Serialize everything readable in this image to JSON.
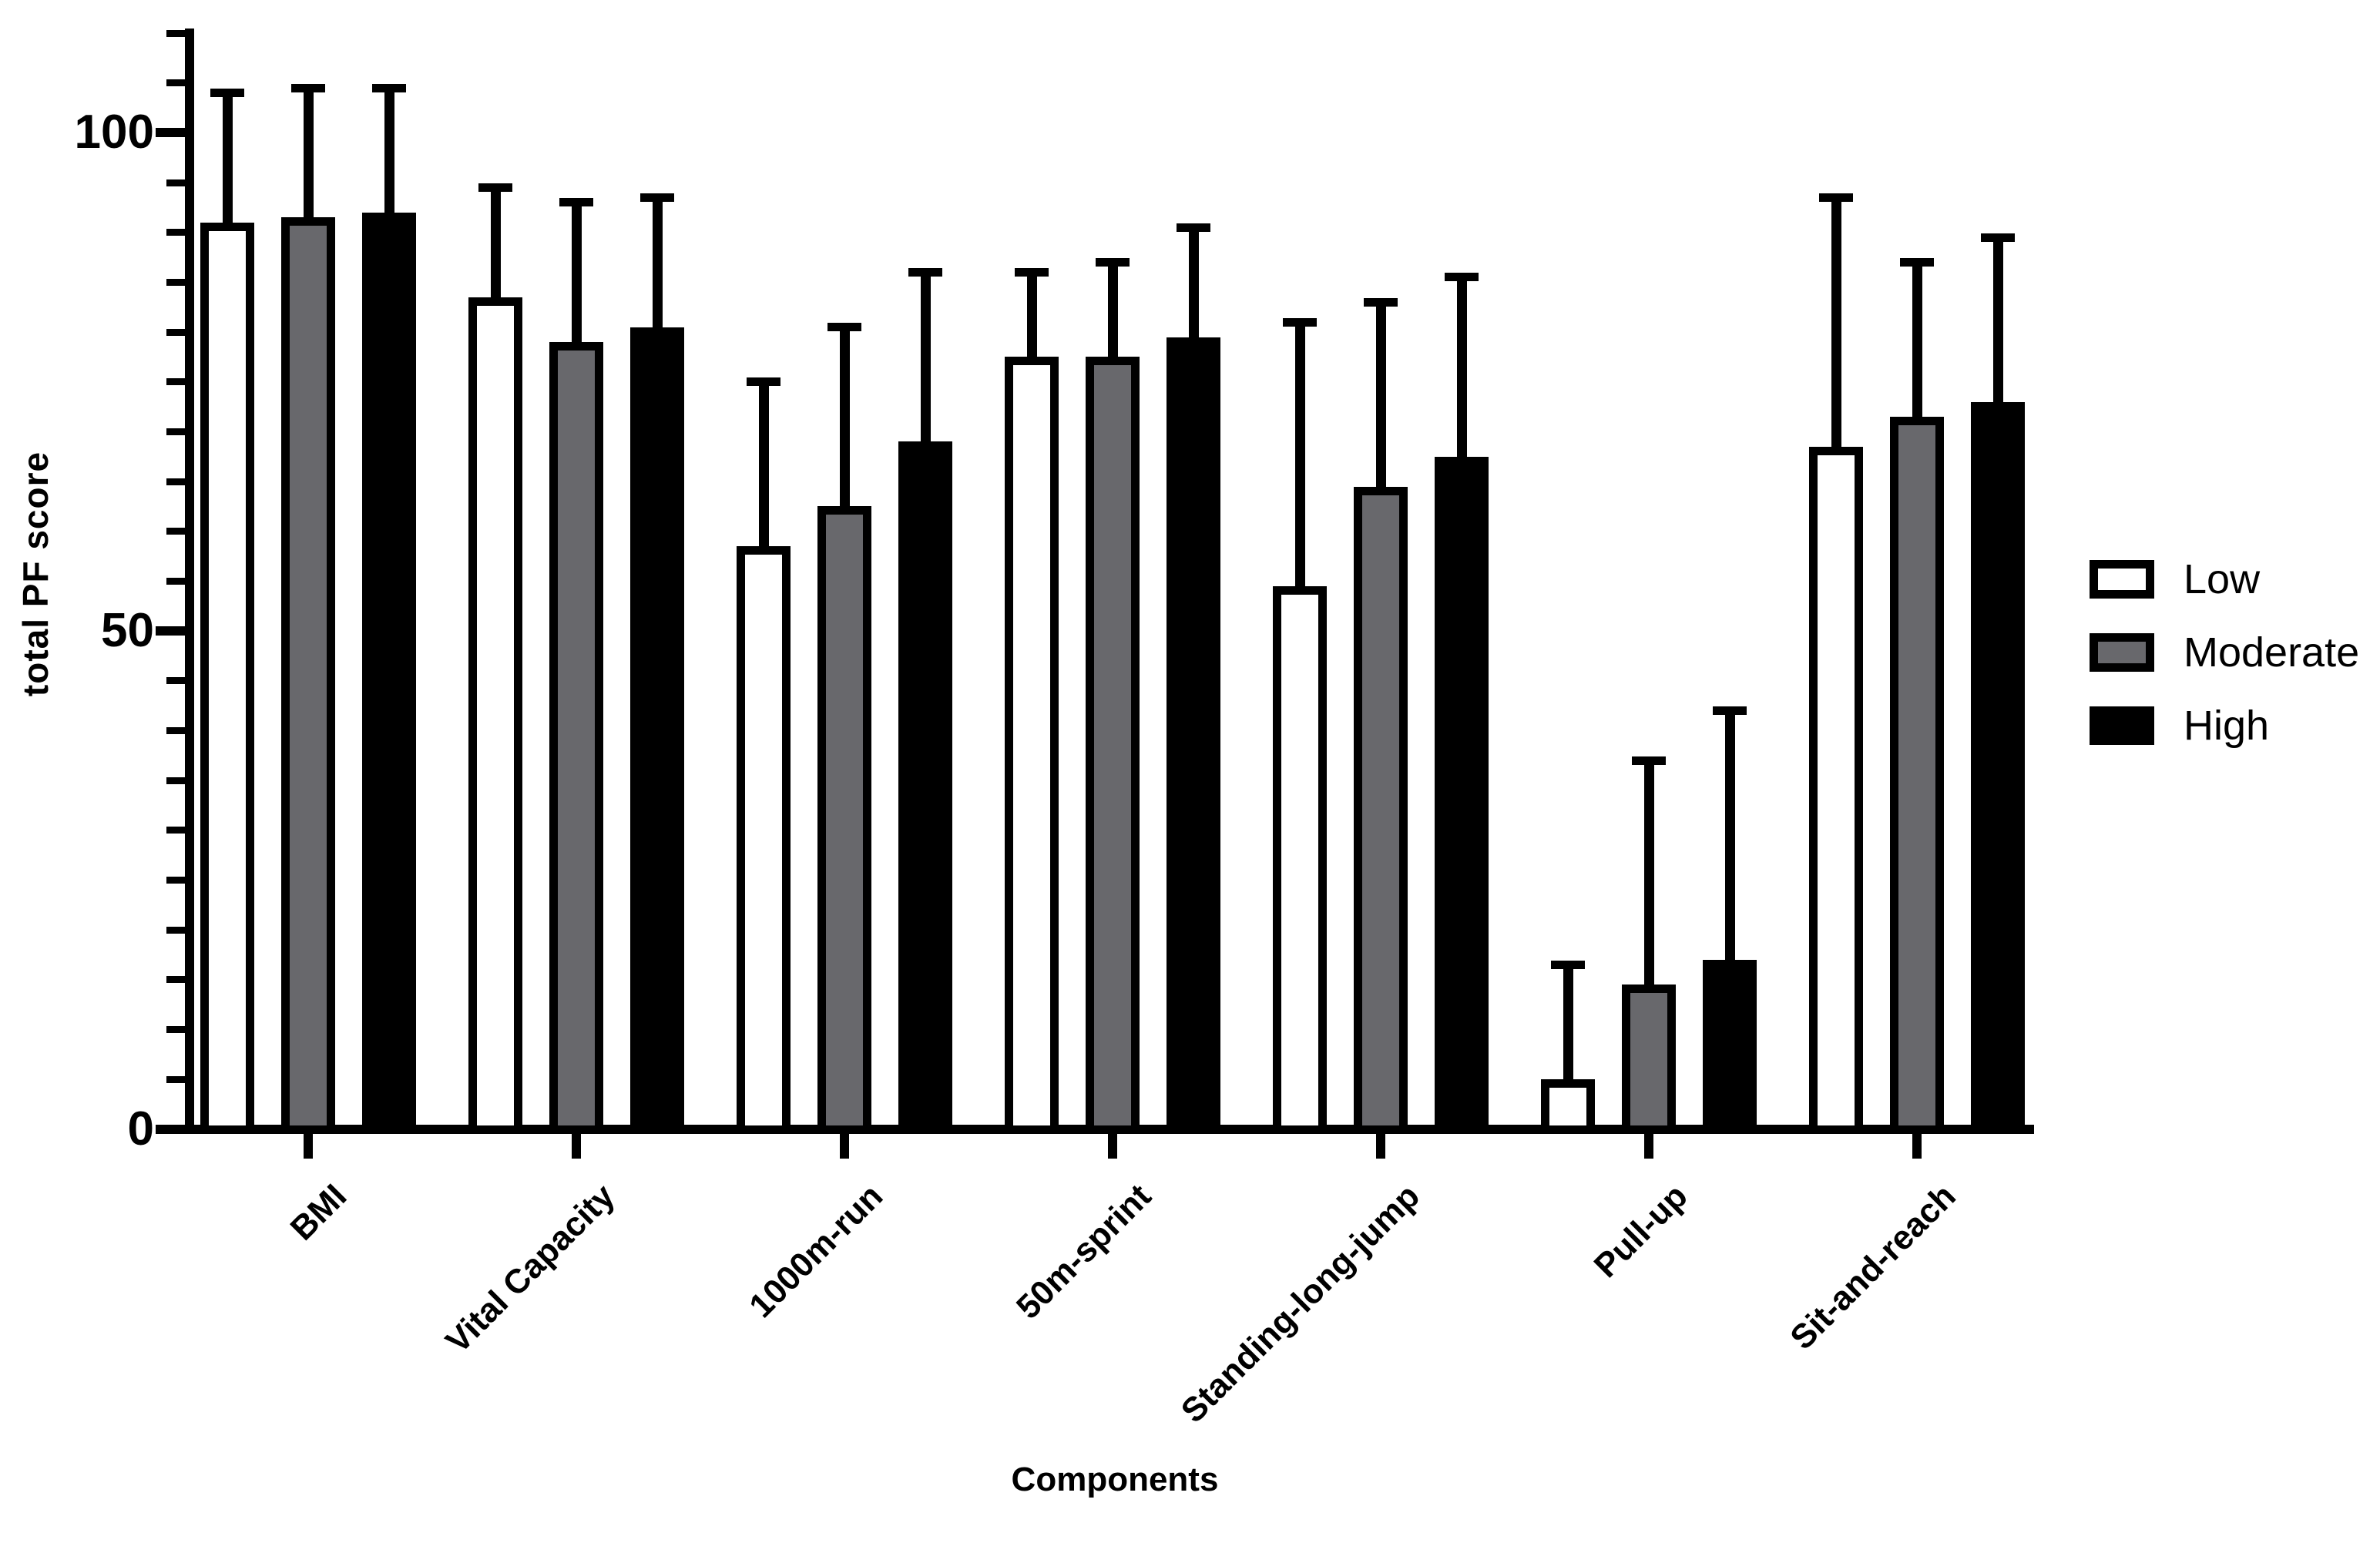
{
  "figure": {
    "background": "#ffffff",
    "ink_color": "#000000"
  },
  "chart_data": {
    "type": "bar",
    "title": "",
    "xlabel": "Components",
    "ylabel": "total PF score",
    "ylim": [
      0,
      110
    ],
    "yticks_major": [
      0,
      50,
      100
    ],
    "ytick_minor_step": 5,
    "grid": "off",
    "error_bars": "upper-only-sd-caps",
    "legend_position": "right",
    "categories": [
      "BMI",
      "Vital Capacity",
      "1000m-run",
      "50m-sprint",
      "Standing-long-jump",
      "Pull-up",
      "Sit-and-reach"
    ],
    "series": [
      {
        "name": "Low",
        "fill": "#ffffff",
        "values": [
          91,
          83.5,
          58.5,
          77.5,
          54.5,
          5,
          68.5
        ],
        "error_top": [
          104,
          94.5,
          75,
          86,
          81,
          16.5,
          93.5
        ]
      },
      {
        "name": "Moderate",
        "fill": "#68686c",
        "values": [
          91.5,
          79,
          62.5,
          77.5,
          64.5,
          14.5,
          71.5
        ],
        "error_top": [
          104.5,
          93,
          80.5,
          87,
          83,
          37,
          87
        ]
      },
      {
        "name": "High",
        "fill": "#000000",
        "values": [
          92,
          80.5,
          69,
          79.5,
          67.5,
          17,
          73
        ],
        "error_top": [
          104.5,
          93.5,
          86,
          90.5,
          85.5,
          42,
          89.5
        ]
      }
    ]
  }
}
